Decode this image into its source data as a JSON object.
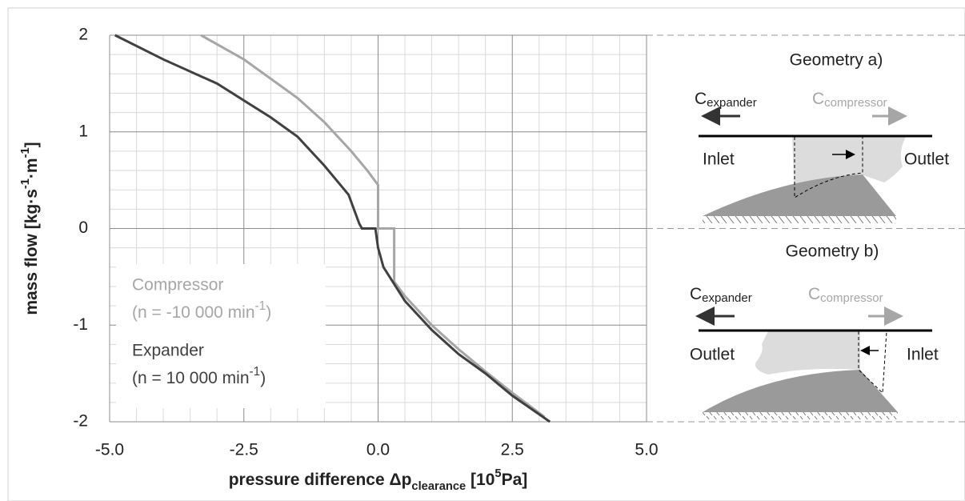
{
  "chart_data": {
    "type": "line",
    "xlabel": [
      {
        "text": "pressure difference Δp"
      },
      {
        "sub": "clearance"
      },
      {
        "text": " [10"
      },
      {
        "sup": "5"
      },
      {
        "text": "Pa]"
      }
    ],
    "ylabel": [
      {
        "text": "mass flow [kg·s"
      },
      {
        "sup": "-1"
      },
      {
        "text": "·m"
      },
      {
        "sup": "-1"
      },
      {
        "text": "]"
      }
    ],
    "xlim": [
      -5,
      5
    ],
    "ylim": [
      -2,
      2
    ],
    "xticks": [
      {
        "value": -5,
        "label": "-5.0"
      },
      {
        "value": -2.5,
        "label": "-2.5"
      },
      {
        "value": 0,
        "label": "0.0"
      },
      {
        "value": 2.5,
        "label": "2.5"
      },
      {
        "value": 5,
        "label": "5.0"
      }
    ],
    "yticks": [
      -2,
      -1,
      0,
      1,
      2
    ],
    "grid": true,
    "legend": "lower left",
    "series": [
      {
        "name": "Compressor",
        "speed": [
          {
            "text": "(n = -10 000 min"
          },
          {
            "sup": "-1"
          },
          {
            "text": ")"
          }
        ],
        "color": "#a6a6a6",
        "x": [
          -3.3,
          -2.5,
          -1.5,
          -1,
          -0.5,
          -0.2,
          0,
          0,
          0.3,
          0.3,
          0.5,
          1,
          1.5,
          2,
          2.5,
          3.1
        ],
        "values": [
          2,
          1.75,
          1.35,
          1.1,
          0.8,
          0.6,
          0.45,
          0,
          0,
          -0.55,
          -0.7,
          -1.0,
          -1.25,
          -1.48,
          -1.7,
          -1.95
        ]
      },
      {
        "name": "Expander",
        "speed": [
          {
            "text": "(n = 10 000 min"
          },
          {
            "sup": "-1"
          },
          {
            "text": ")"
          }
        ],
        "color": "#404040",
        "x": [
          -4.9,
          -4,
          -3,
          -2,
          -1.5,
          -1,
          -0.7,
          -0.55,
          -0.45,
          -0.35,
          -0.3,
          -0.05,
          0,
          0.1,
          0.5,
          1,
          1.5,
          2,
          2.5,
          3.2
        ],
        "values": [
          2,
          1.75,
          1.5,
          1.15,
          0.95,
          0.65,
          0.45,
          0.35,
          0.2,
          0.05,
          0,
          0,
          -0.2,
          -0.4,
          -0.75,
          -1.05,
          -1.3,
          -1.5,
          -1.73,
          -2
        ]
      }
    ]
  },
  "diagrams": [
    {
      "title": "Geometry a)",
      "c": "C",
      "expander": "expander",
      "compressor": "compressor",
      "left": "Inlet",
      "right": "Outlet"
    },
    {
      "title": "Geometry b)",
      "c": "C",
      "expander": "expander",
      "compressor": "compressor",
      "left": "Outlet",
      "right": "Inlet"
    }
  ]
}
